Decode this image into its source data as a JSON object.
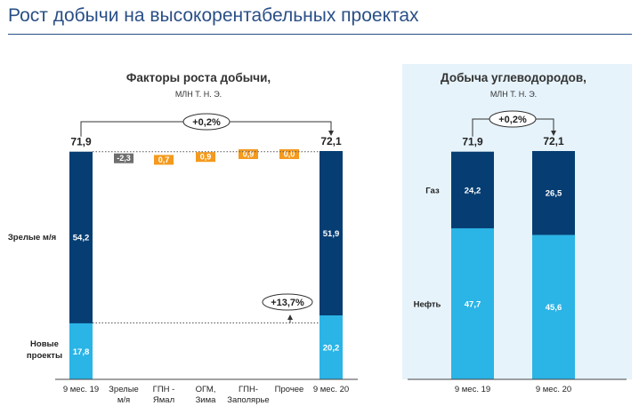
{
  "page_title": "Рост добычи на высокорентабельных проектах",
  "colors": {
    "dark_navy": "#063e73",
    "light_blue": "#2bb4e6",
    "gray_bar": "#6e6e6e",
    "orange_bar": "#f49a1d",
    "panel_bg": "#e6f3fb",
    "title_blue": "#2a4f86"
  },
  "chart_data": [
    {
      "type": "waterfall",
      "title": "Факторы роста добычи,",
      "subtitle": "МЛН Т. Н. Э.",
      "unit": "млн т.н.э.",
      "row_labels": {
        "mature": "Зрелые м/я",
        "new": [
          "Новые",
          "проекты"
        ]
      },
      "start": {
        "label": "9 мес. 19",
        "total": 71.9,
        "total_label": "71,9",
        "segments": [
          {
            "name": "Новые проекты",
            "value": 17.8,
            "label": "17,8"
          },
          {
            "name": "Зрелые м/я",
            "value": 54.2,
            "label": "54,2"
          }
        ]
      },
      "steps": [
        {
          "label_lines": [
            "Зрелые",
            "м/я"
          ],
          "value": -2.3,
          "label": "-2,3",
          "color": "gray"
        },
        {
          "label_lines": [
            "ГПН -",
            "Ямал"
          ],
          "value": 0.7,
          "label": "0,7",
          "color": "orange"
        },
        {
          "label_lines": [
            "ОГМ,",
            "Зима"
          ],
          "value": 0.9,
          "label": "0,9",
          "color": "orange"
        },
        {
          "label_lines": [
            "ГПН-",
            "Заполярье"
          ],
          "value": 0.9,
          "label": "0,9",
          "color": "orange"
        },
        {
          "label_lines": [
            "Прочее"
          ],
          "value": 0.0,
          "label": "0,0",
          "color": "orange"
        }
      ],
      "end": {
        "label": "9 мес. 20",
        "total": 72.1,
        "total_label": "72,1",
        "segments": [
          {
            "name": "Новые проекты",
            "value": 20.2,
            "label": "20,2"
          },
          {
            "name": "Зрелые м/я",
            "value": 51.9,
            "label": "51,9"
          }
        ]
      },
      "annotations": {
        "total_change": "+0,2%",
        "new_projects_change": "+13,7%"
      }
    },
    {
      "type": "stacked_bar",
      "title": "Добыча углеводородов,",
      "subtitle": "МЛН Т. Н. Э.",
      "categories": [
        "9 мес. 19",
        "9 мес. 20"
      ],
      "totals": [
        71.9,
        72.1
      ],
      "total_labels": [
        "71,9",
        "72,1"
      ],
      "series": [
        {
          "name": "Нефть",
          "values": [
            47.7,
            45.6
          ],
          "labels": [
            "47,7",
            "45,6"
          ]
        },
        {
          "name": "Газ",
          "values": [
            24.2,
            26.5
          ],
          "labels": [
            "24,2",
            "26,5"
          ]
        }
      ],
      "annotations": {
        "total_change": "+0,2%"
      }
    }
  ]
}
